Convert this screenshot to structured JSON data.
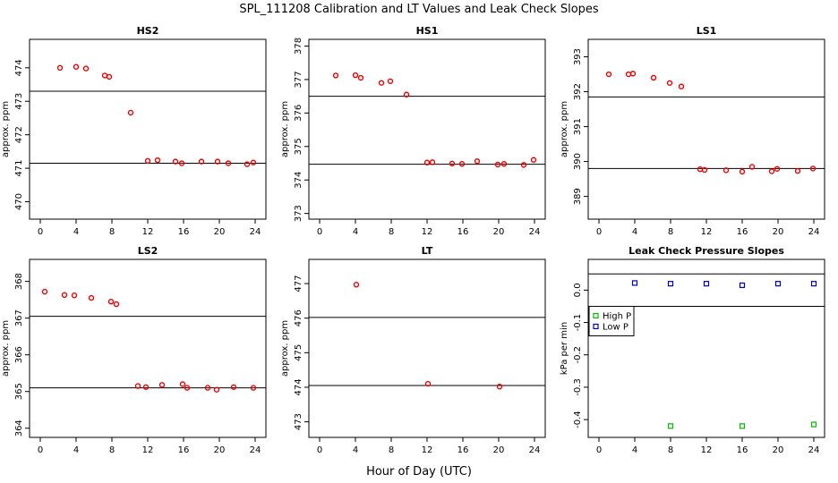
{
  "figure": {
    "title": "SPL_111208  Calibration and LT Values and Leak Check Slopes",
    "xlabel": "Hour of Day (UTC)"
  },
  "colors": {
    "red": "#ee0000",
    "blue": "#0000cc",
    "green": "#00bb00",
    "axis": "#000000"
  },
  "chart_data": [
    {
      "id": "hs2",
      "type": "scatter",
      "title": "HS2",
      "ylabel": "approx. ppm",
      "xlim": [
        -1.2,
        25.2
      ],
      "ylim": [
        469.48,
        474.85
      ],
      "xticks": [
        0,
        4,
        8,
        12,
        16,
        20,
        24
      ],
      "yticks": [
        470,
        471,
        472,
        473,
        474
      ],
      "hlines": [
        473.3,
        471.15
      ],
      "series": [
        {
          "name": "cal",
          "color": "#ee0000",
          "symbol": "circle",
          "x": [
            2.2,
            4.0,
            5.1,
            7.2,
            7.7,
            10.1,
            12.0,
            13.1,
            15.1,
            15.8,
            18.0,
            19.8,
            21.0,
            23.1,
            23.8
          ],
          "y": [
            474.0,
            474.03,
            473.98,
            473.77,
            473.73,
            472.66,
            471.22,
            471.24,
            471.2,
            471.15,
            471.2,
            471.2,
            471.15,
            471.12,
            471.17
          ]
        }
      ]
    },
    {
      "id": "hs1",
      "type": "scatter",
      "title": "HS1",
      "ylabel": "approx. ppm",
      "xlim": [
        -1.2,
        25.2
      ],
      "ylim": [
        372.83,
        378.2
      ],
      "xticks": [
        0,
        4,
        8,
        12,
        16,
        20,
        24
      ],
      "yticks": [
        373,
        374,
        375,
        376,
        377,
        378
      ],
      "hlines": [
        376.5,
        374.47
      ],
      "series": [
        {
          "name": "cal",
          "color": "#ee0000",
          "symbol": "circle",
          "x": [
            1.8,
            4.0,
            4.6,
            6.9,
            7.9,
            9.7,
            12.0,
            12.6,
            14.8,
            15.9,
            17.6,
            19.9,
            20.6,
            22.8,
            23.9
          ],
          "y": [
            377.12,
            377.13,
            377.05,
            376.9,
            376.95,
            376.55,
            374.52,
            374.53,
            374.49,
            374.48,
            374.56,
            374.46,
            374.48,
            374.45,
            374.6
          ]
        }
      ]
    },
    {
      "id": "ls1",
      "type": "scatter",
      "title": "LS1",
      "ylabel": "approx. ppm",
      "xlim": [
        -1.2,
        25.2
      ],
      "ylim": [
        388.35,
        393.5
      ],
      "xticks": [
        0,
        4,
        8,
        12,
        16,
        20,
        24
      ],
      "yticks": [
        389,
        390,
        391,
        392,
        393
      ],
      "hlines": [
        391.85,
        389.8
      ],
      "series": [
        {
          "name": "cal",
          "color": "#ee0000",
          "symbol": "circle",
          "x": [
            1.1,
            3.3,
            3.8,
            6.1,
            7.9,
            9.2,
            11.3,
            11.8,
            14.2,
            16.0,
            17.1,
            19.3,
            19.9,
            22.2,
            23.9
          ],
          "y": [
            392.5,
            392.5,
            392.52,
            392.4,
            392.25,
            392.15,
            389.78,
            389.76,
            389.75,
            389.71,
            389.85,
            389.72,
            389.79,
            389.73,
            389.8
          ]
        }
      ]
    },
    {
      "id": "ls2",
      "type": "scatter",
      "title": "LS2",
      "ylabel": "approx. ppm",
      "xlim": [
        -1.2,
        25.2
      ],
      "ylim": [
        363.75,
        368.6
      ],
      "xticks": [
        0,
        4,
        8,
        12,
        16,
        20,
        24
      ],
      "yticks": [
        364,
        365,
        366,
        367,
        368
      ],
      "hlines": [
        367.05,
        365.1
      ],
      "series": [
        {
          "name": "cal",
          "color": "#ee0000",
          "symbol": "circle",
          "x": [
            0.5,
            2.7,
            3.8,
            5.7,
            7.9,
            8.5,
            10.9,
            11.8,
            13.6,
            15.9,
            16.4,
            18.7,
            19.7,
            21.6,
            23.8
          ],
          "y": [
            367.72,
            367.63,
            367.62,
            367.55,
            367.45,
            367.38,
            365.15,
            365.12,
            365.18,
            365.2,
            365.1,
            365.1,
            365.05,
            365.12,
            365.1
          ]
        }
      ]
    },
    {
      "id": "lt",
      "type": "scatter",
      "title": "LT",
      "ylabel": "approx. ppm",
      "xlim": [
        -1.2,
        25.2
      ],
      "ylim": [
        472.55,
        477.7
      ],
      "xticks": [
        0,
        4,
        8,
        12,
        16,
        20,
        24
      ],
      "yticks": [
        473,
        474,
        475,
        476,
        477
      ],
      "hlines": [
        476.02,
        474.05
      ],
      "series": [
        {
          "name": "LT",
          "color": "#ee0000",
          "symbol": "circle",
          "x": [
            4.1,
            12.1,
            20.1
          ],
          "y": [
            476.97,
            474.1,
            474.02
          ]
        }
      ]
    },
    {
      "id": "leak",
      "type": "scatter",
      "title": "Leak Check Pressure Slopes",
      "ylabel": "kPa per min",
      "xlim": [
        -1.2,
        25.2
      ],
      "ylim": [
        -0.455,
        0.095
      ],
      "xticks": [
        0,
        4,
        8,
        12,
        16,
        20,
        24
      ],
      "yticks": [
        0.0,
        -0.1,
        -0.2,
        -0.3,
        -0.4
      ],
      "hlines": [
        0.05,
        -0.05
      ],
      "legend": {
        "position": "left",
        "entries": [
          {
            "label": "High P",
            "color": "#00bb00"
          },
          {
            "label": "Low P",
            "color": "#0000cc"
          }
        ]
      },
      "series": [
        {
          "name": "High P",
          "color": "#00bb00",
          "symbol": "square",
          "x": [
            8.0,
            16.0,
            24.0
          ],
          "y": [
            -0.42,
            -0.42,
            -0.415
          ]
        },
        {
          "name": "Low P",
          "color": "#0000cc",
          "symbol": "square",
          "x": [
            4.0,
            8.0,
            12.0,
            16.0,
            20.0,
            24.0
          ],
          "y": [
            0.022,
            0.02,
            0.02,
            0.015,
            0.02,
            0.02
          ]
        }
      ]
    }
  ]
}
